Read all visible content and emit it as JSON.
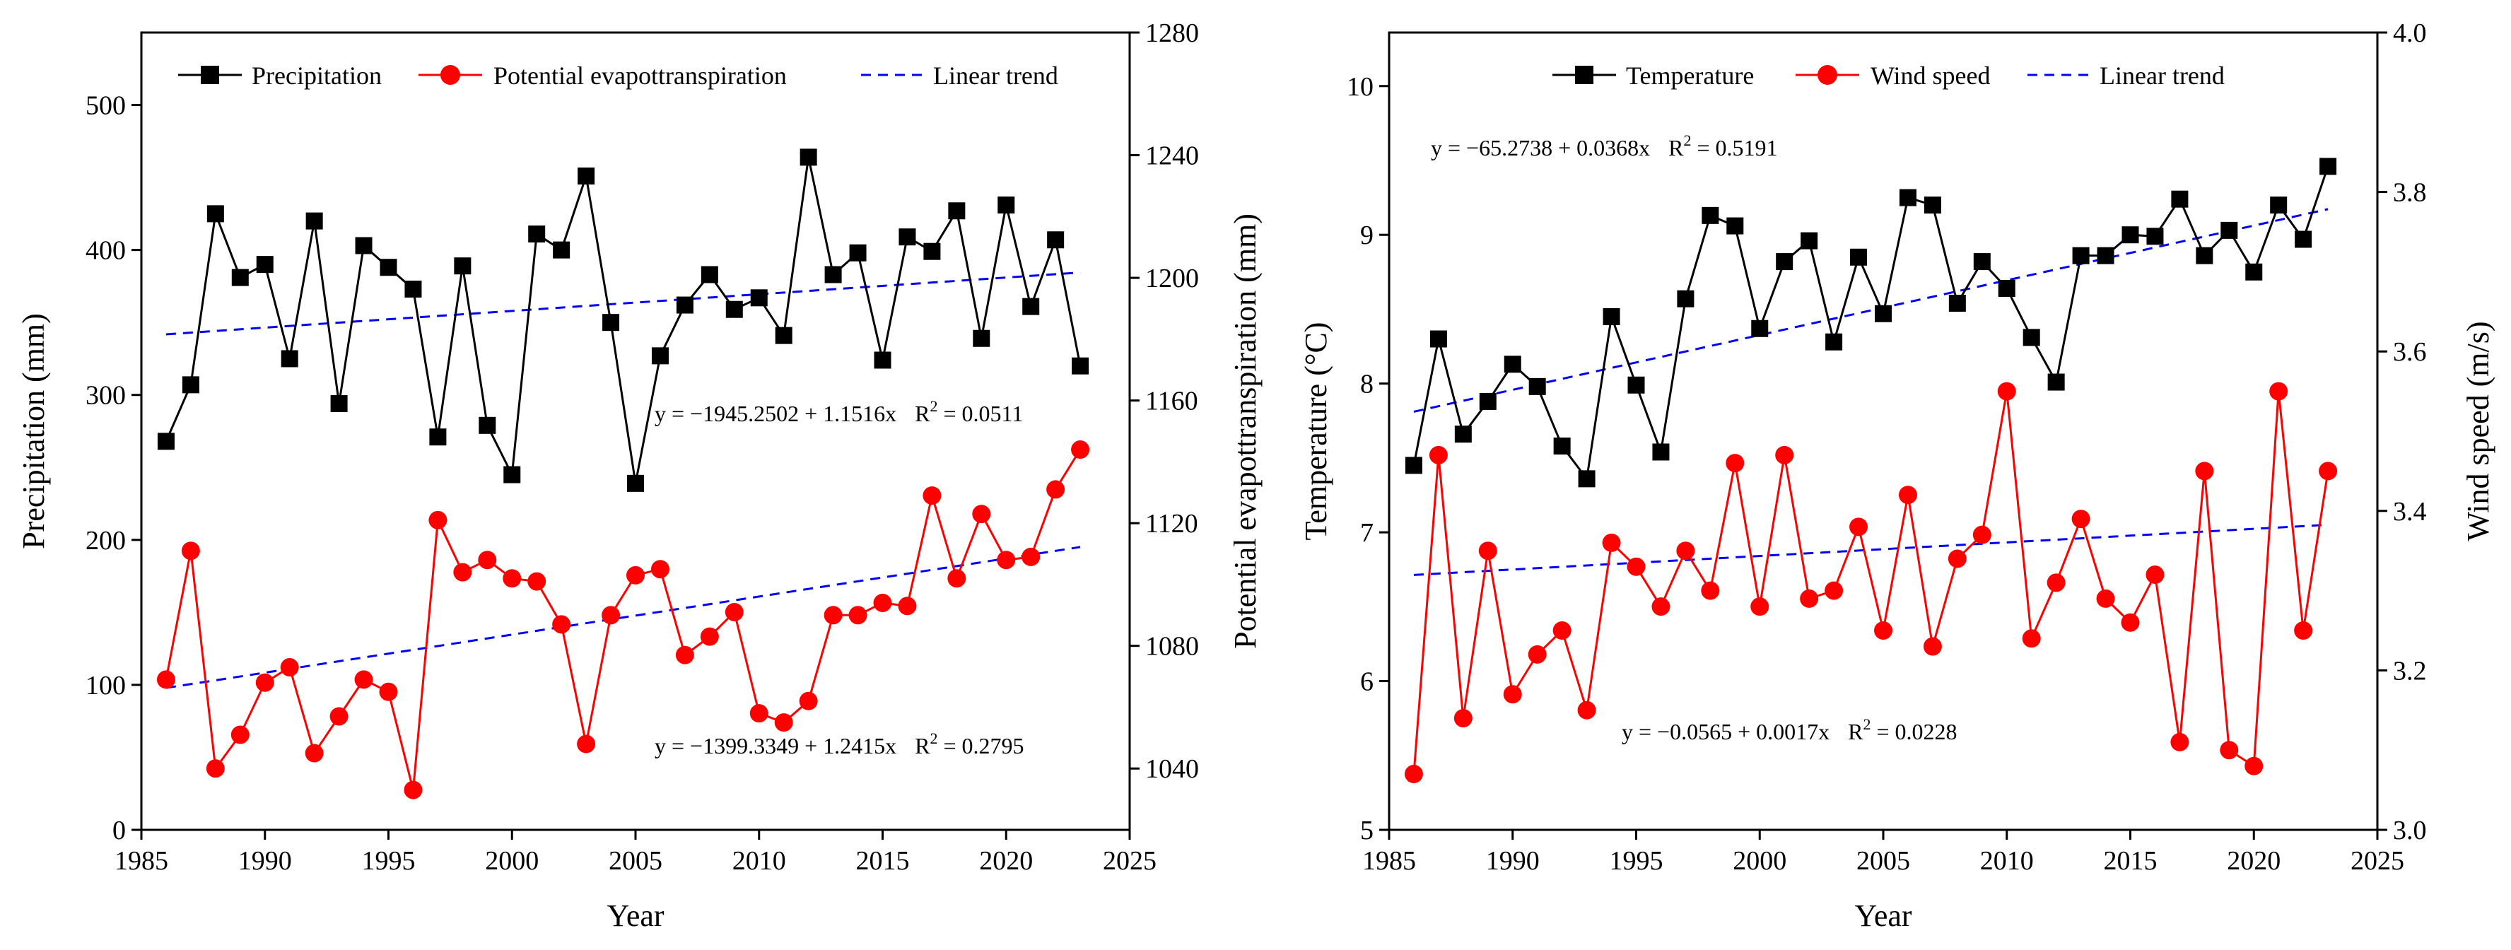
{
  "chart_data": [
    {
      "type": "line",
      "xlabel": "Year",
      "ylabel": "Precipitation (mm)",
      "y2label": "Potential evapottranspiration (mm)",
      "xlim": [
        1985,
        2025
      ],
      "ylim": [
        0,
        550
      ],
      "y2lim": [
        1020,
        1280
      ],
      "xticks": [
        "1985",
        "1990",
        "1995",
        "2000",
        "2005",
        "2010",
        "2015",
        "2020",
        "2025"
      ],
      "yticks": [
        "0",
        "100",
        "200",
        "300",
        "400",
        "500"
      ],
      "y2ticks": [
        "1040",
        "1080",
        "1120",
        "1160",
        "1200",
        "1240",
        "1280"
      ],
      "x": [
        1986,
        1987,
        1988,
        1989,
        1990,
        1991,
        1992,
        1993,
        1994,
        1995,
        1996,
        1997,
        1998,
        1999,
        2000,
        2001,
        2002,
        2003,
        2004,
        2005,
        2006,
        2007,
        2008,
        2009,
        2010,
        2011,
        2012,
        2013,
        2014,
        2015,
        2016,
        2017,
        2018,
        2019,
        2020,
        2021,
        2022,
        2023
      ],
      "legend": {
        "position": "top",
        "labels": [
          "Precipitation",
          "Potential evapottranspiration",
          "Linear trend"
        ]
      },
      "series": [
        {
          "name": "Precipitation",
          "axis": "left",
          "color": "#000000",
          "marker": "square",
          "values": [
            268,
            307,
            425,
            381,
            390,
            325,
            420,
            294,
            403,
            388,
            373,
            271,
            389,
            279,
            245,
            411,
            400,
            451,
            350,
            239,
            327,
            362,
            383,
            359,
            367,
            341,
            464,
            383,
            398,
            324,
            409,
            399,
            427,
            339,
            431,
            361,
            407,
            320
          ]
        },
        {
          "name": "Potential evapottranspiration",
          "axis": "right",
          "color": "#ff0000",
          "marker": "circle",
          "values": [
            1069,
            1111,
            1040,
            1051,
            1068,
            1073,
            1045,
            1057,
            1069,
            1065,
            1033,
            1121,
            1104,
            1108,
            1102,
            1101,
            1087,
            1048,
            1090,
            1103,
            1105,
            1077,
            1083,
            1091,
            1058,
            1055,
            1062,
            1090,
            1090,
            1094,
            1093,
            1129,
            1102,
            1123,
            1108,
            1109,
            1131,
            1144
          ]
        }
      ],
      "trends": [
        {
          "name": "Linear trend",
          "axis": "left",
          "color": "#0000ff",
          "intercept": -1945.2502,
          "slope": 1.1516,
          "x_range": [
            1986,
            2023
          ],
          "equation": "y = −1945.2502 + 1.1516x",
          "r2_label": "R",
          "r2_value": " = 0.0511"
        },
        {
          "name": "Linear trend",
          "axis": "right",
          "color": "#0000ff",
          "intercept": -1399.3349,
          "slope": 1.2415,
          "x_range": [
            1986,
            2023
          ],
          "equation": "y = −1399.3349 + 1.2415x",
          "r2_label": "R",
          "r2_value": " = 0.2795"
        }
      ]
    },
    {
      "type": "line",
      "xlabel": "Year",
      "ylabel": "Temperature (°C)",
      "y2label": "Wind speed (m/s)",
      "xlim": [
        1985,
        2025
      ],
      "ylim": [
        5,
        10.36
      ],
      "y2lim": [
        3.0,
        4.0
      ],
      "xticks": [
        "1985",
        "1990",
        "1995",
        "2000",
        "2005",
        "2010",
        "2015",
        "2020",
        "2025"
      ],
      "yticks": [
        "5",
        "6",
        "7",
        "8",
        "9",
        "10"
      ],
      "y2ticks": [
        "3.0",
        "3.2",
        "3.4",
        "3.6",
        "3.8",
        "4.0"
      ],
      "x": [
        1986,
        1987,
        1988,
        1989,
        1990,
        1991,
        1992,
        1993,
        1994,
        1995,
        1996,
        1997,
        1998,
        1999,
        2000,
        2001,
        2002,
        2003,
        2004,
        2005,
        2006,
        2007,
        2008,
        2009,
        2010,
        2011,
        2012,
        2013,
        2014,
        2015,
        2016,
        2017,
        2018,
        2019,
        2020,
        2021,
        2022,
        2023
      ],
      "legend": {
        "position": "top",
        "labels": [
          "Temperature",
          "Wind speed",
          "Linear trend"
        ]
      },
      "series": [
        {
          "name": "Temperature",
          "axis": "left",
          "color": "#000000",
          "marker": "square",
          "values": [
            7.45,
            8.3,
            7.66,
            7.88,
            8.13,
            7.98,
            7.58,
            7.36,
            8.45,
            7.99,
            7.54,
            8.57,
            9.13,
            9.06,
            8.37,
            8.82,
            8.96,
            8.28,
            8.85,
            8.47,
            9.25,
            9.2,
            8.54,
            8.82,
            8.64,
            8.31,
            8.01,
            8.86,
            8.86,
            9.0,
            8.99,
            9.24,
            8.86,
            9.03,
            8.75,
            9.2,
            8.97,
            9.46
          ]
        },
        {
          "name": "Wind speed",
          "axis": "right",
          "color": "#ff0000",
          "marker": "circle",
          "values": [
            3.07,
            3.47,
            3.14,
            3.35,
            3.17,
            3.22,
            3.25,
            3.15,
            3.36,
            3.33,
            3.28,
            3.35,
            3.3,
            3.46,
            3.28,
            3.47,
            3.29,
            3.3,
            3.38,
            3.25,
            3.42,
            3.23,
            3.34,
            3.37,
            3.55,
            3.24,
            3.31,
            3.39,
            3.29,
            3.26,
            3.32,
            3.11,
            3.45,
            3.1,
            3.08,
            3.55,
            3.25,
            3.45
          ]
        }
      ],
      "trends": [
        {
          "name": "Linear trend",
          "axis": "left",
          "color": "#0000ff",
          "intercept": -65.2738,
          "slope": 0.0368,
          "x_range": [
            1986,
            2023
          ],
          "equation": "y = −65.2738 + 0.0368x",
          "r2_label": "R",
          "r2_value": " = 0.5191"
        },
        {
          "name": "Linear trend",
          "axis": "right",
          "color": "#0000ff",
          "intercept": -0.0565,
          "slope": 0.0017,
          "x_range": [
            1986,
            2023
          ],
          "equation": "y = −0.0565 + 0.0017x",
          "r2_label": "R",
          "r2_value": " = 0.0228"
        }
      ]
    }
  ]
}
